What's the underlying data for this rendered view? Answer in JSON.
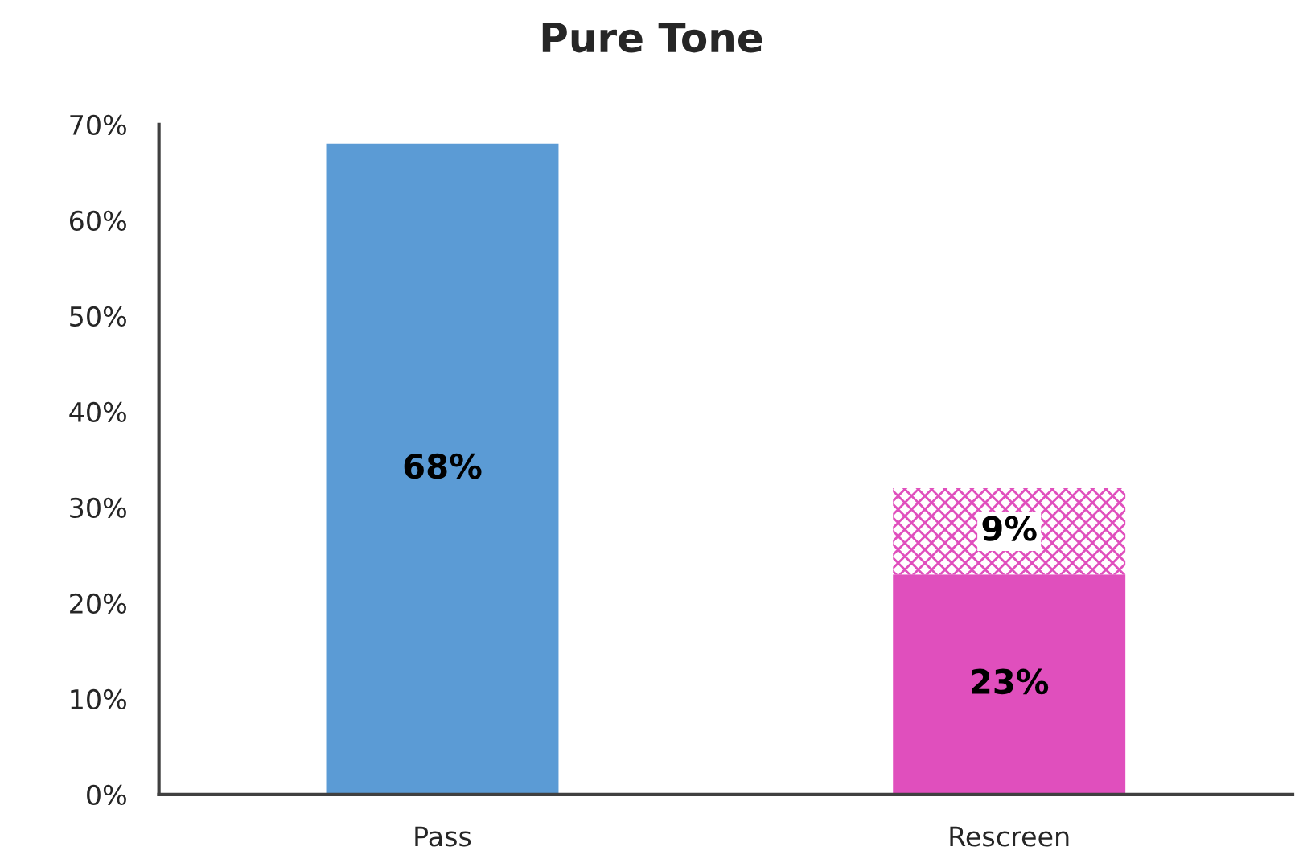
{
  "chart_data": {
    "type": "bar",
    "title": "Pure Tone",
    "stacked": true,
    "categories": [
      "Pass",
      "Rescreen"
    ],
    "series": [
      {
        "colors": [
          "#5b9bd5",
          "#e04fbd"
        ],
        "values": [
          68,
          23
        ],
        "value_labels": [
          "68%",
          "23%"
        ]
      },
      {
        "color": "#e04fbd",
        "values": [
          null,
          9
        ],
        "value_labels": [
          null,
          "9%"
        ]
      }
    ],
    "ylim": [
      0,
      70
    ],
    "yticks": [
      {
        "value": 0,
        "label": "0%"
      },
      {
        "value": 10,
        "label": "10%"
      },
      {
        "value": 20,
        "label": "20%"
      },
      {
        "value": 30,
        "label": "30%"
      },
      {
        "value": 40,
        "label": "40%"
      },
      {
        "value": 50,
        "label": "50%"
      },
      {
        "value": 60,
        "label": "60%"
      },
      {
        "value": 70,
        "label": "70%"
      }
    ],
    "grid": false,
    "legend": false
  }
}
